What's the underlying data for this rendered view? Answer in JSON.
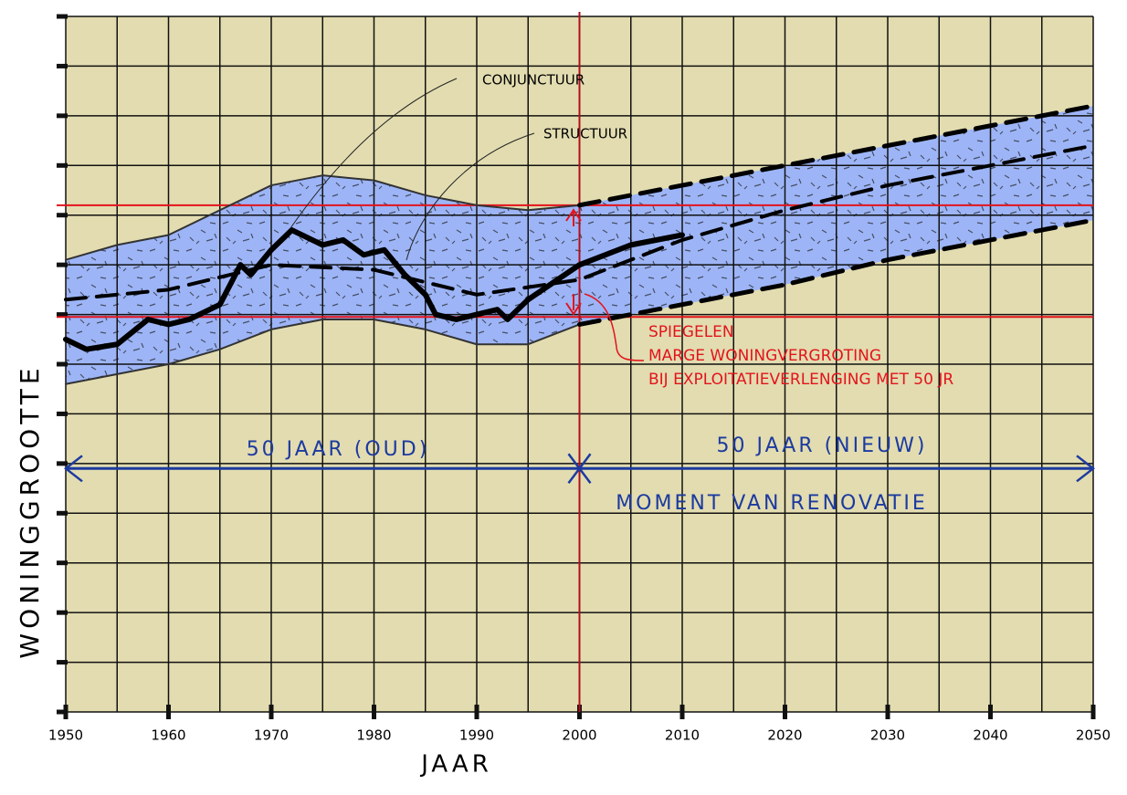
{
  "chart_data": {
    "type": "line",
    "x_label": "JAAR",
    "y_label": "WONINGGROOTTE",
    "xlim": [
      1950,
      2050
    ],
    "ylim": [
      0,
      14
    ],
    "xticks": [
      1950,
      1960,
      1970,
      1980,
      1990,
      2000,
      2010,
      2020,
      2030,
      2040,
      2050
    ],
    "xgrid": [
      1950,
      1955,
      1960,
      1965,
      1970,
      1975,
      1980,
      1985,
      1990,
      1995,
      2000,
      2005,
      2010,
      2015,
      2020,
      2025,
      2030,
      2035,
      2040,
      2045,
      2050
    ],
    "yticks": [
      0,
      1,
      2,
      3,
      4,
      5,
      6,
      7,
      8,
      9,
      10,
      11,
      12,
      13,
      14
    ],
    "grid": true,
    "background": "#e2dcb0",
    "band_color": "#9db5f7",
    "series": [
      {
        "x": [
          1950,
          1955,
          1960,
          1965,
          1970,
          1975,
          1980,
          1985,
          1990,
          1995,
          2000
        ],
        "values": [
          9.1,
          9.4,
          9.6,
          10.1,
          10.6,
          10.8,
          10.7,
          10.4,
          10.2,
          10.1,
          10.2
        ],
        "color": "#333333",
        "dash": false,
        "width": 2
      },
      {
        "x": [
          1950,
          1955,
          1960,
          1965,
          1970,
          1975,
          1980,
          1985,
          1990,
          1995,
          2000
        ],
        "values": [
          6.6,
          6.8,
          7.0,
          7.3,
          7.7,
          7.9,
          7.9,
          7.7,
          7.4,
          7.4,
          7.8
        ],
        "color": "#333333",
        "dash": false,
        "width": 2
      },
      {
        "x": [
          2000,
          2010,
          2020,
          2030,
          2040,
          2050
        ],
        "values": [
          10.2,
          10.6,
          11.0,
          11.4,
          11.8,
          12.2
        ],
        "color": "#000000",
        "dash": true,
        "width": 5
      },
      {
        "x": [
          2000,
          2010,
          2020,
          2030,
          2040,
          2050
        ],
        "values": [
          7.8,
          8.2,
          8.6,
          9.1,
          9.5,
          9.9
        ],
        "color": "#000000",
        "dash": true,
        "width": 5
      },
      {
        "x": [
          1950,
          1960,
          1970,
          1980,
          1990,
          2000,
          2010,
          2020,
          2030,
          2040,
          2050
        ],
        "values": [
          8.3,
          8.5,
          9.0,
          8.9,
          8.4,
          8.7,
          9.5,
          10.1,
          10.6,
          11.0,
          11.4
        ],
        "color": "#000000",
        "dash": true,
        "width": 4
      },
      {
        "x": [
          1950,
          1952,
          1955,
          1958,
          1960,
          1962,
          1965,
          1967,
          1968,
          1970,
          1972,
          1974,
          1975,
          1977,
          1979,
          1981,
          1983,
          1985,
          1986,
          1988,
          1990,
          1992,
          1993,
          1995,
          2000,
          2005,
          2010
        ],
        "values": [
          7.5,
          7.3,
          7.4,
          7.9,
          7.8,
          7.9,
          8.2,
          9.0,
          8.8,
          9.3,
          9.7,
          9.5,
          9.4,
          9.5,
          9.2,
          9.3,
          8.8,
          8.4,
          8.0,
          7.9,
          8.0,
          8.1,
          7.9,
          8.3,
          9.0,
          9.4,
          9.6
        ],
        "color": "#000000",
        "dash": false,
        "width": 6
      }
    ],
    "hlines": [
      {
        "value": 10.2,
        "color": "#e3141c"
      },
      {
        "value": 7.95,
        "color": "#e3141c"
      }
    ],
    "vline": {
      "value": 2000,
      "color": "#b0101c"
    },
    "span_arrow": {
      "value": 4.9,
      "color": "#1c3aa0"
    },
    "annotations": {
      "conjunctuur": "CONJUNCTUUR",
      "structuur": "STRUCTUUR",
      "spiegelen": [
        "SPIEGELEN",
        "MARGE WONINGVERGROTING",
        "BIJ EXPLOITATIEVERLENGING MET 50 JR"
      ],
      "old": "50 JAAR (OUD)",
      "new": "50 JAAR (NIEUW)",
      "renovation": "MOMENT VAN RENOVATIE"
    }
  }
}
